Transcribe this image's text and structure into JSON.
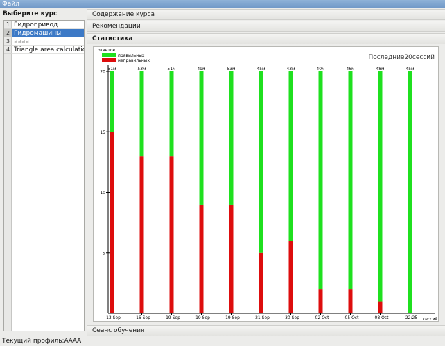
{
  "menu": {
    "file": "Файл"
  },
  "courses": {
    "heading": "Выберите курс",
    "items": [
      {
        "number": "1",
        "name": "Гидропривод",
        "selected": false,
        "dim": false
      },
      {
        "number": "2",
        "name": "Гидромашины",
        "selected": true,
        "dim": false
      },
      {
        "number": "3",
        "name": "аааа",
        "selected": false,
        "dim": true
      },
      {
        "number": "4",
        "name": "Triangle area calculations",
        "selected": false,
        "dim": false
      }
    ]
  },
  "sections": {
    "content": "Содержание курса",
    "recommendations": "Рекомендации",
    "statistics": "Статистика",
    "session": "Сеанс обучения"
  },
  "colors": {
    "correct": "#1fe01f",
    "incorrect": "#dd0d0d",
    "selection": "#3c79c6"
  },
  "chart_data": {
    "type": "bar",
    "stacked": true,
    "title": "Последние20сессий",
    "ylabel": "ответов",
    "xlabel": "сессий",
    "ylim": [
      0,
      20
    ],
    "yticks": [
      5,
      10,
      15,
      20
    ],
    "legend_position": "top-left",
    "categories": [
      "13 Sep",
      "16 Sep",
      "19 Sep",
      "19 Sep",
      "19 Sep",
      "21 Sep",
      "30 Sep",
      "02 Oct",
      "05 Oct",
      "08 Oct",
      "22:25"
    ],
    "durations": [
      "51м",
      "53м",
      "51м",
      "49м",
      "53м",
      "45м",
      "43м",
      "40м",
      "46м",
      "48м",
      "45м"
    ],
    "series": [
      {
        "name": "неправильных",
        "color": "#dd0d0d",
        "values": [
          15,
          13,
          13,
          9,
          9,
          5,
          6,
          2,
          2,
          1,
          0
        ]
      },
      {
        "name": "правильных",
        "color": "#1fe01f",
        "values": [
          5,
          7,
          7,
          11,
          11,
          15,
          14,
          18,
          18,
          19,
          20
        ]
      }
    ]
  },
  "status": {
    "profile": "Текущий профиль:АААА"
  }
}
